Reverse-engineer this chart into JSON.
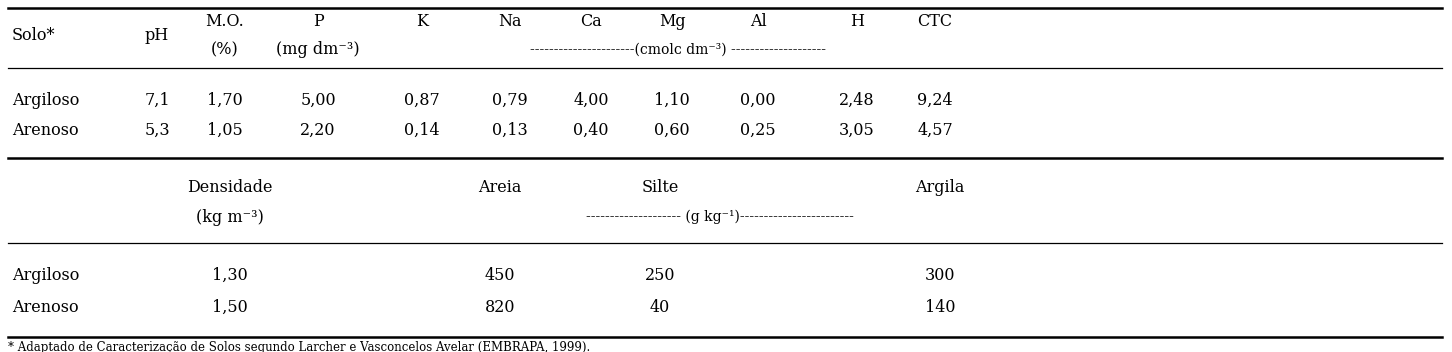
{
  "top_rows": [
    [
      "Argiloso",
      "7,1",
      "1,70",
      "5,00",
      "0,87",
      "0,79",
      "4,00",
      "1,10",
      "0,00",
      "2,48",
      "9,24"
    ],
    [
      "Arenoso",
      "5,3",
      "1,05",
      "2,20",
      "0,14",
      "0,13",
      "0,40",
      "0,60",
      "0,25",
      "3,05",
      "4,57"
    ]
  ],
  "bot_rows": [
    [
      "Argiloso",
      "1,30",
      "450",
      "250",
      "300"
    ],
    [
      "Arenoso",
      "1,50",
      "820",
      "40",
      "140"
    ]
  ],
  "bg_color": "#ffffff",
  "text_color": "#000000",
  "font_family": "DejaVu Serif",
  "font_size": 11.5
}
